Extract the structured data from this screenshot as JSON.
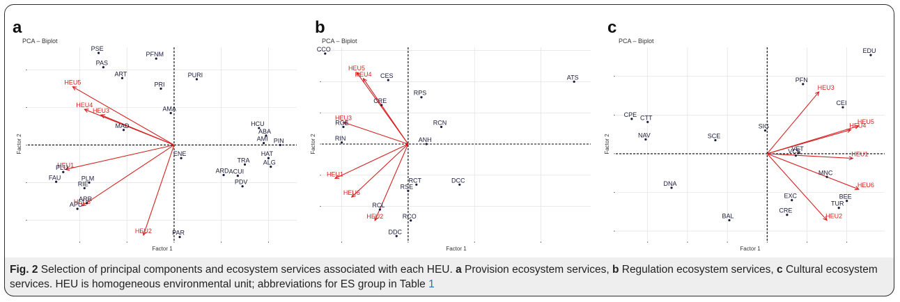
{
  "caption": {
    "fig_label": "Fig. 2",
    "text_1": " Selection of principal components and ecosystem services associated with each HEU. ",
    "a": "a",
    "text_a": " Provision ecosystem services, ",
    "b": "b",
    "text_b": " Regulation ecosystem services, ",
    "c": "c",
    "text_c": " Cultural ecosystem services. HEU is homogeneous environmental unit; abbreviations for ES group in Table ",
    "table_ref": "1"
  },
  "colors": {
    "points": "#1a1a3a",
    "heu": "#d62020",
    "axis": "#000000",
    "grid": "#dddddd"
  },
  "chart_data": [
    {
      "panel": "a",
      "type": "scatter",
      "title": "PCA – Biplot",
      "xlabel": "Factor 1",
      "ylabel": "Factor 2",
      "xlim": [
        -3.1,
        2.6
      ],
      "ylim": [
        -2.55,
        2.6
      ],
      "xgrid": [
        -2,
        -1,
        0,
        1,
        2
      ],
      "ygrid": [
        -2,
        -1,
        0,
        1,
        2
      ],
      "points": [
        {
          "label": "PSE",
          "x": -1.6,
          "y": 2.45
        },
        {
          "label": "PFNM",
          "x": -0.38,
          "y": 2.3
        },
        {
          "label": "PAS",
          "x": -1.5,
          "y": 2.07
        },
        {
          "label": "ART",
          "x": -1.1,
          "y": 1.78
        },
        {
          "label": "PURI",
          "x": 0.48,
          "y": 1.75
        },
        {
          "label": "PRI",
          "x": -0.28,
          "y": 1.5
        },
        {
          "label": "AMA",
          "x": -0.07,
          "y": 0.85
        },
        {
          "label": "MAD",
          "x": -1.07,
          "y": 0.4
        },
        {
          "label": "HCU",
          "x": 1.8,
          "y": 0.45
        },
        {
          "label": "ABA",
          "x": 1.95,
          "y": 0.25
        },
        {
          "label": "AMI",
          "x": 1.9,
          "y": 0.05
        },
        {
          "label": "PIN",
          "x": 2.25,
          "y": 0.0
        },
        {
          "label": "HAT",
          "x": 2.0,
          "y": -0.35
        },
        {
          "label": "ENE",
          "x": 0.15,
          "y": -0.35
        },
        {
          "label": "TRA",
          "x": 1.5,
          "y": -0.52
        },
        {
          "label": "ALG",
          "x": 2.05,
          "y": -0.58
        },
        {
          "label": "ARD",
          "x": 1.05,
          "y": -0.8
        },
        {
          "label": "ACUI",
          "x": 1.35,
          "y": -0.82
        },
        {
          "label": "PLU",
          "x": -2.35,
          "y": -0.72
        },
        {
          "label": "FAU",
          "x": -2.5,
          "y": -0.98
        },
        {
          "label": "PLM",
          "x": -1.8,
          "y": -1.0
        },
        {
          "label": "RIE",
          "x": -1.9,
          "y": -1.15
        },
        {
          "label": "PDV",
          "x": 1.45,
          "y": -1.1
        },
        {
          "label": "ARR",
          "x": -1.85,
          "y": -1.55
        },
        {
          "label": "APU",
          "x": -2.05,
          "y": -1.7
        },
        {
          "label": "PAR",
          "x": 0.12,
          "y": -2.45
        }
      ],
      "vectors": [
        {
          "label": "HEU5",
          "x": -2.15,
          "y": 1.55
        },
        {
          "label": "HEU4",
          "x": -1.9,
          "y": 0.95
        },
        {
          "label": "HEU3",
          "x": -1.55,
          "y": 0.8
        },
        {
          "label": "HEU1",
          "x": -2.3,
          "y": -0.65
        },
        {
          "label": "HEU6",
          "x": -1.95,
          "y": -1.62
        },
        {
          "label": "HEU2",
          "x": -0.65,
          "y": -2.4
        }
      ]
    },
    {
      "panel": "b",
      "type": "scatter",
      "title": "PCA – Biplot",
      "xlabel": "Factor 1",
      "ylabel": "Factor 2",
      "xlim": [
        -2.6,
        5.5
      ],
      "ylim": [
        -3.1,
        3.1
      ],
      "xgrid": [
        -2,
        0,
        2,
        4
      ],
      "ygrid": [
        -2,
        -1,
        0,
        1,
        2,
        3
      ],
      "points": [
        {
          "label": "CCO",
          "x": -2.5,
          "y": 2.9
        },
        {
          "label": "CES",
          "x": -0.6,
          "y": 2.05
        },
        {
          "label": "ATS",
          "x": 5.0,
          "y": 2.0
        },
        {
          "label": "RPS",
          "x": 0.4,
          "y": 1.5
        },
        {
          "label": "CRE",
          "x": -0.8,
          "y": 1.25
        },
        {
          "label": "RCN",
          "x": 1.0,
          "y": 0.55
        },
        {
          "label": "RGE",
          "x": -1.95,
          "y": 0.55
        },
        {
          "label": "RIN",
          "x": -2.0,
          "y": 0.05
        },
        {
          "label": "ANH",
          "x": 0.55,
          "y": 0.0
        },
        {
          "label": "RCT",
          "x": 0.25,
          "y": -1.3
        },
        {
          "label": "DCC",
          "x": 1.55,
          "y": -1.3
        },
        {
          "label": "RSE",
          "x": 0.0,
          "y": -1.5
        },
        {
          "label": "RCL",
          "x": -0.85,
          "y": -2.1
        },
        {
          "label": "RCO",
          "x": 0.08,
          "y": -2.45
        },
        {
          "label": "DDC",
          "x": -0.35,
          "y": -2.95
        }
      ],
      "vectors": [
        {
          "label": "HEU5",
          "x": -1.55,
          "y": 2.3
        },
        {
          "label": "HEU4",
          "x": -1.35,
          "y": 2.1
        },
        {
          "label": "HEU3",
          "x": -1.95,
          "y": 0.7
        },
        {
          "label": "HEU1",
          "x": -2.2,
          "y": -1.1
        },
        {
          "label": "HEU6",
          "x": -1.7,
          "y": -1.7
        },
        {
          "label": "HEU2",
          "x": -1.0,
          "y": -2.45
        }
      ]
    },
    {
      "panel": "c",
      "type": "scatter",
      "title": "PCA – Biplot",
      "xlabel": "Factor 1",
      "ylabel": "Factor 2",
      "xlim": [
        -3.8,
        2.95
      ],
      "ylim": [
        -2.25,
        2.75
      ],
      "xgrid": [
        -3,
        -2,
        -1,
        0,
        1,
        2
      ],
      "ygrid": [
        -2,
        -1,
        0,
        1,
        2
      ],
      "points": [
        {
          "label": "EDU",
          "x": 2.6,
          "y": 2.55
        },
        {
          "label": "PFN",
          "x": 0.9,
          "y": 1.8
        },
        {
          "label": "CEI",
          "x": 1.9,
          "y": 1.2
        },
        {
          "label": "CPE",
          "x": -3.4,
          "y": 0.9
        },
        {
          "label": "CTT",
          "x": -3.0,
          "y": 0.82
        },
        {
          "label": "SIG",
          "x": -0.05,
          "y": 0.6
        },
        {
          "label": "SCE",
          "x": -1.3,
          "y": 0.35
        },
        {
          "label": "NAV",
          "x": -3.05,
          "y": 0.37
        },
        {
          "label": "VET",
          "x": 0.8,
          "y": 0.02
        },
        {
          "label": "VCE",
          "x": 0.72,
          "y": -0.05
        },
        {
          "label": "MNC",
          "x": 1.5,
          "y": -0.6
        },
        {
          "label": "DNA",
          "x": -2.4,
          "y": -0.88
        },
        {
          "label": "EXC",
          "x": 0.62,
          "y": -1.2
        },
        {
          "label": "BEE",
          "x": 2.0,
          "y": -1.22
        },
        {
          "label": "TUR",
          "x": 1.8,
          "y": -1.4
        },
        {
          "label": "CRE",
          "x": 0.5,
          "y": -1.58
        },
        {
          "label": "BAL",
          "x": -0.95,
          "y": -1.72
        }
      ],
      "vectors": [
        {
          "label": "HEU3",
          "x": 1.3,
          "y": 1.6
        },
        {
          "label": "HEU5",
          "x": 2.3,
          "y": 0.72
        },
        {
          "label": "HEU4",
          "x": 2.1,
          "y": 0.62
        },
        {
          "label": "HEU1",
          "x": 2.15,
          "y": -0.12
        },
        {
          "label": "HEU6",
          "x": 2.3,
          "y": -0.92
        },
        {
          "label": "HEU2",
          "x": 1.5,
          "y": -1.72
        }
      ]
    }
  ]
}
